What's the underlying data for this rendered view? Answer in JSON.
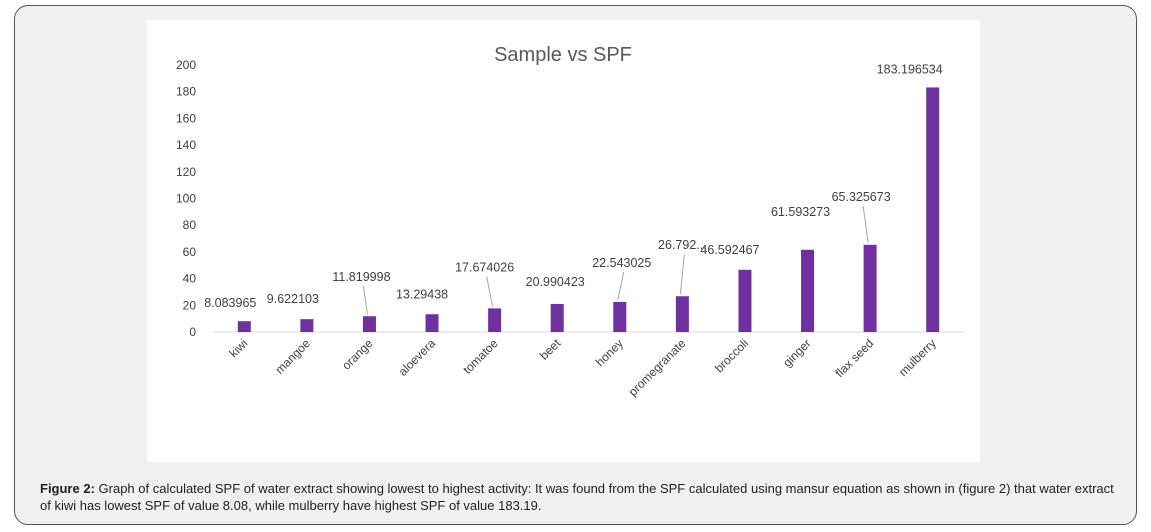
{
  "caption": {
    "label": "Figure 2:",
    "text": " Graph of calculated SPF of water extract showing lowest to highest activity:  It was found from the SPF calculated using mansur equation as shown in (figure 2) that water extract of kiwi has lowest SPF of value 8.08, while mulberry have highest SPF of value 183.19."
  },
  "colors": {
    "bar": "#7030a0",
    "leader": "#a6a6a6",
    "text": "#404040",
    "title": "#595959",
    "axis": "#d9d9d9"
  },
  "chart_data": {
    "type": "bar",
    "title": "Sample vs SPF",
    "xlabel": "",
    "ylabel": "",
    "ylim": [
      0,
      200
    ],
    "yticks": [
      0,
      20,
      40,
      60,
      80,
      100,
      120,
      140,
      160,
      180,
      200
    ],
    "grid": false,
    "categories": [
      "kiwi",
      "mangoe",
      "orange",
      "aloevera",
      "tomatoe",
      "beet",
      "honey",
      "promegranate",
      "broccoli",
      "ginger",
      "flax seed",
      "mulberry"
    ],
    "values": [
      8.083965,
      9.622103,
      11.819998,
      13.29438,
      17.674026,
      20.990423,
      22.543025,
      26.792,
      46.592467,
      61.593273,
      65.325673,
      183.196534
    ],
    "data_labels": [
      "8.083965",
      "9.622103",
      "11.819998",
      "13.29438",
      "17.674026",
      "20.990423",
      "22.543025",
      "26.792...",
      "46.592467",
      "61.593273",
      "65.325673",
      "183.196534"
    ]
  }
}
